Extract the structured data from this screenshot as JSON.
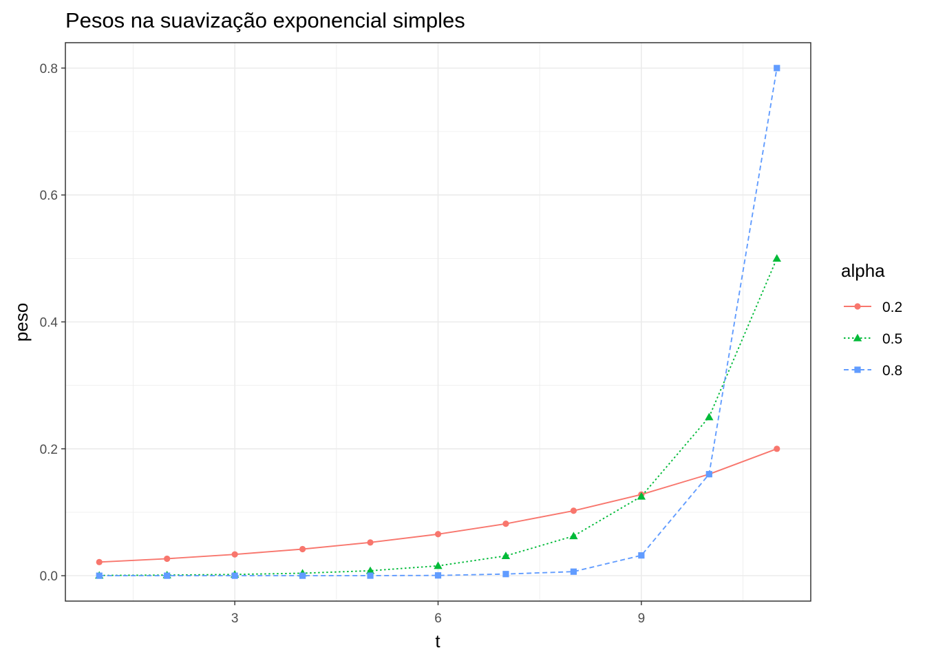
{
  "chart_data": {
    "type": "line",
    "title": "Pesos na suavização exponencial simples",
    "xlabel": "t",
    "ylabel": "peso",
    "xlim": [
      0.5,
      11.5
    ],
    "ylim": [
      -0.04,
      0.84
    ],
    "x_ticks": [
      3,
      6,
      9
    ],
    "x_tick_labels": [
      "3",
      "6",
      "9"
    ],
    "y_ticks": [
      0.0,
      0.2,
      0.4,
      0.6,
      0.8
    ],
    "y_tick_labels": [
      "0.0",
      "0.2",
      "0.4",
      "0.6",
      "0.8"
    ],
    "grid": true,
    "legend": {
      "title": "alpha",
      "placement": "right"
    },
    "x": [
      1,
      2,
      3,
      4,
      5,
      6,
      7,
      8,
      9,
      10,
      11
    ],
    "series": [
      {
        "name": "0.2",
        "color": "#F8766D",
        "line": "solid",
        "marker": "circle",
        "values": [
          0.0215,
          0.0268,
          0.0336,
          0.0419,
          0.0524,
          0.0655,
          0.0819,
          0.1024,
          0.128,
          0.16,
          0.2
        ]
      },
      {
        "name": "0.5",
        "color": "#00BA38",
        "line": "dotted",
        "marker": "triangle",
        "values": [
          0.0005,
          0.001,
          0.002,
          0.0039,
          0.0078,
          0.0156,
          0.0313,
          0.0625,
          0.125,
          0.25,
          0.5
        ]
      },
      {
        "name": "0.8",
        "color": "#619CFF",
        "line": "dashed",
        "marker": "square",
        "values": [
          0.0,
          0.0,
          0.0,
          0.0,
          0.0001,
          0.0005,
          0.0026,
          0.0064,
          0.032,
          0.16,
          0.8
        ]
      }
    ]
  }
}
